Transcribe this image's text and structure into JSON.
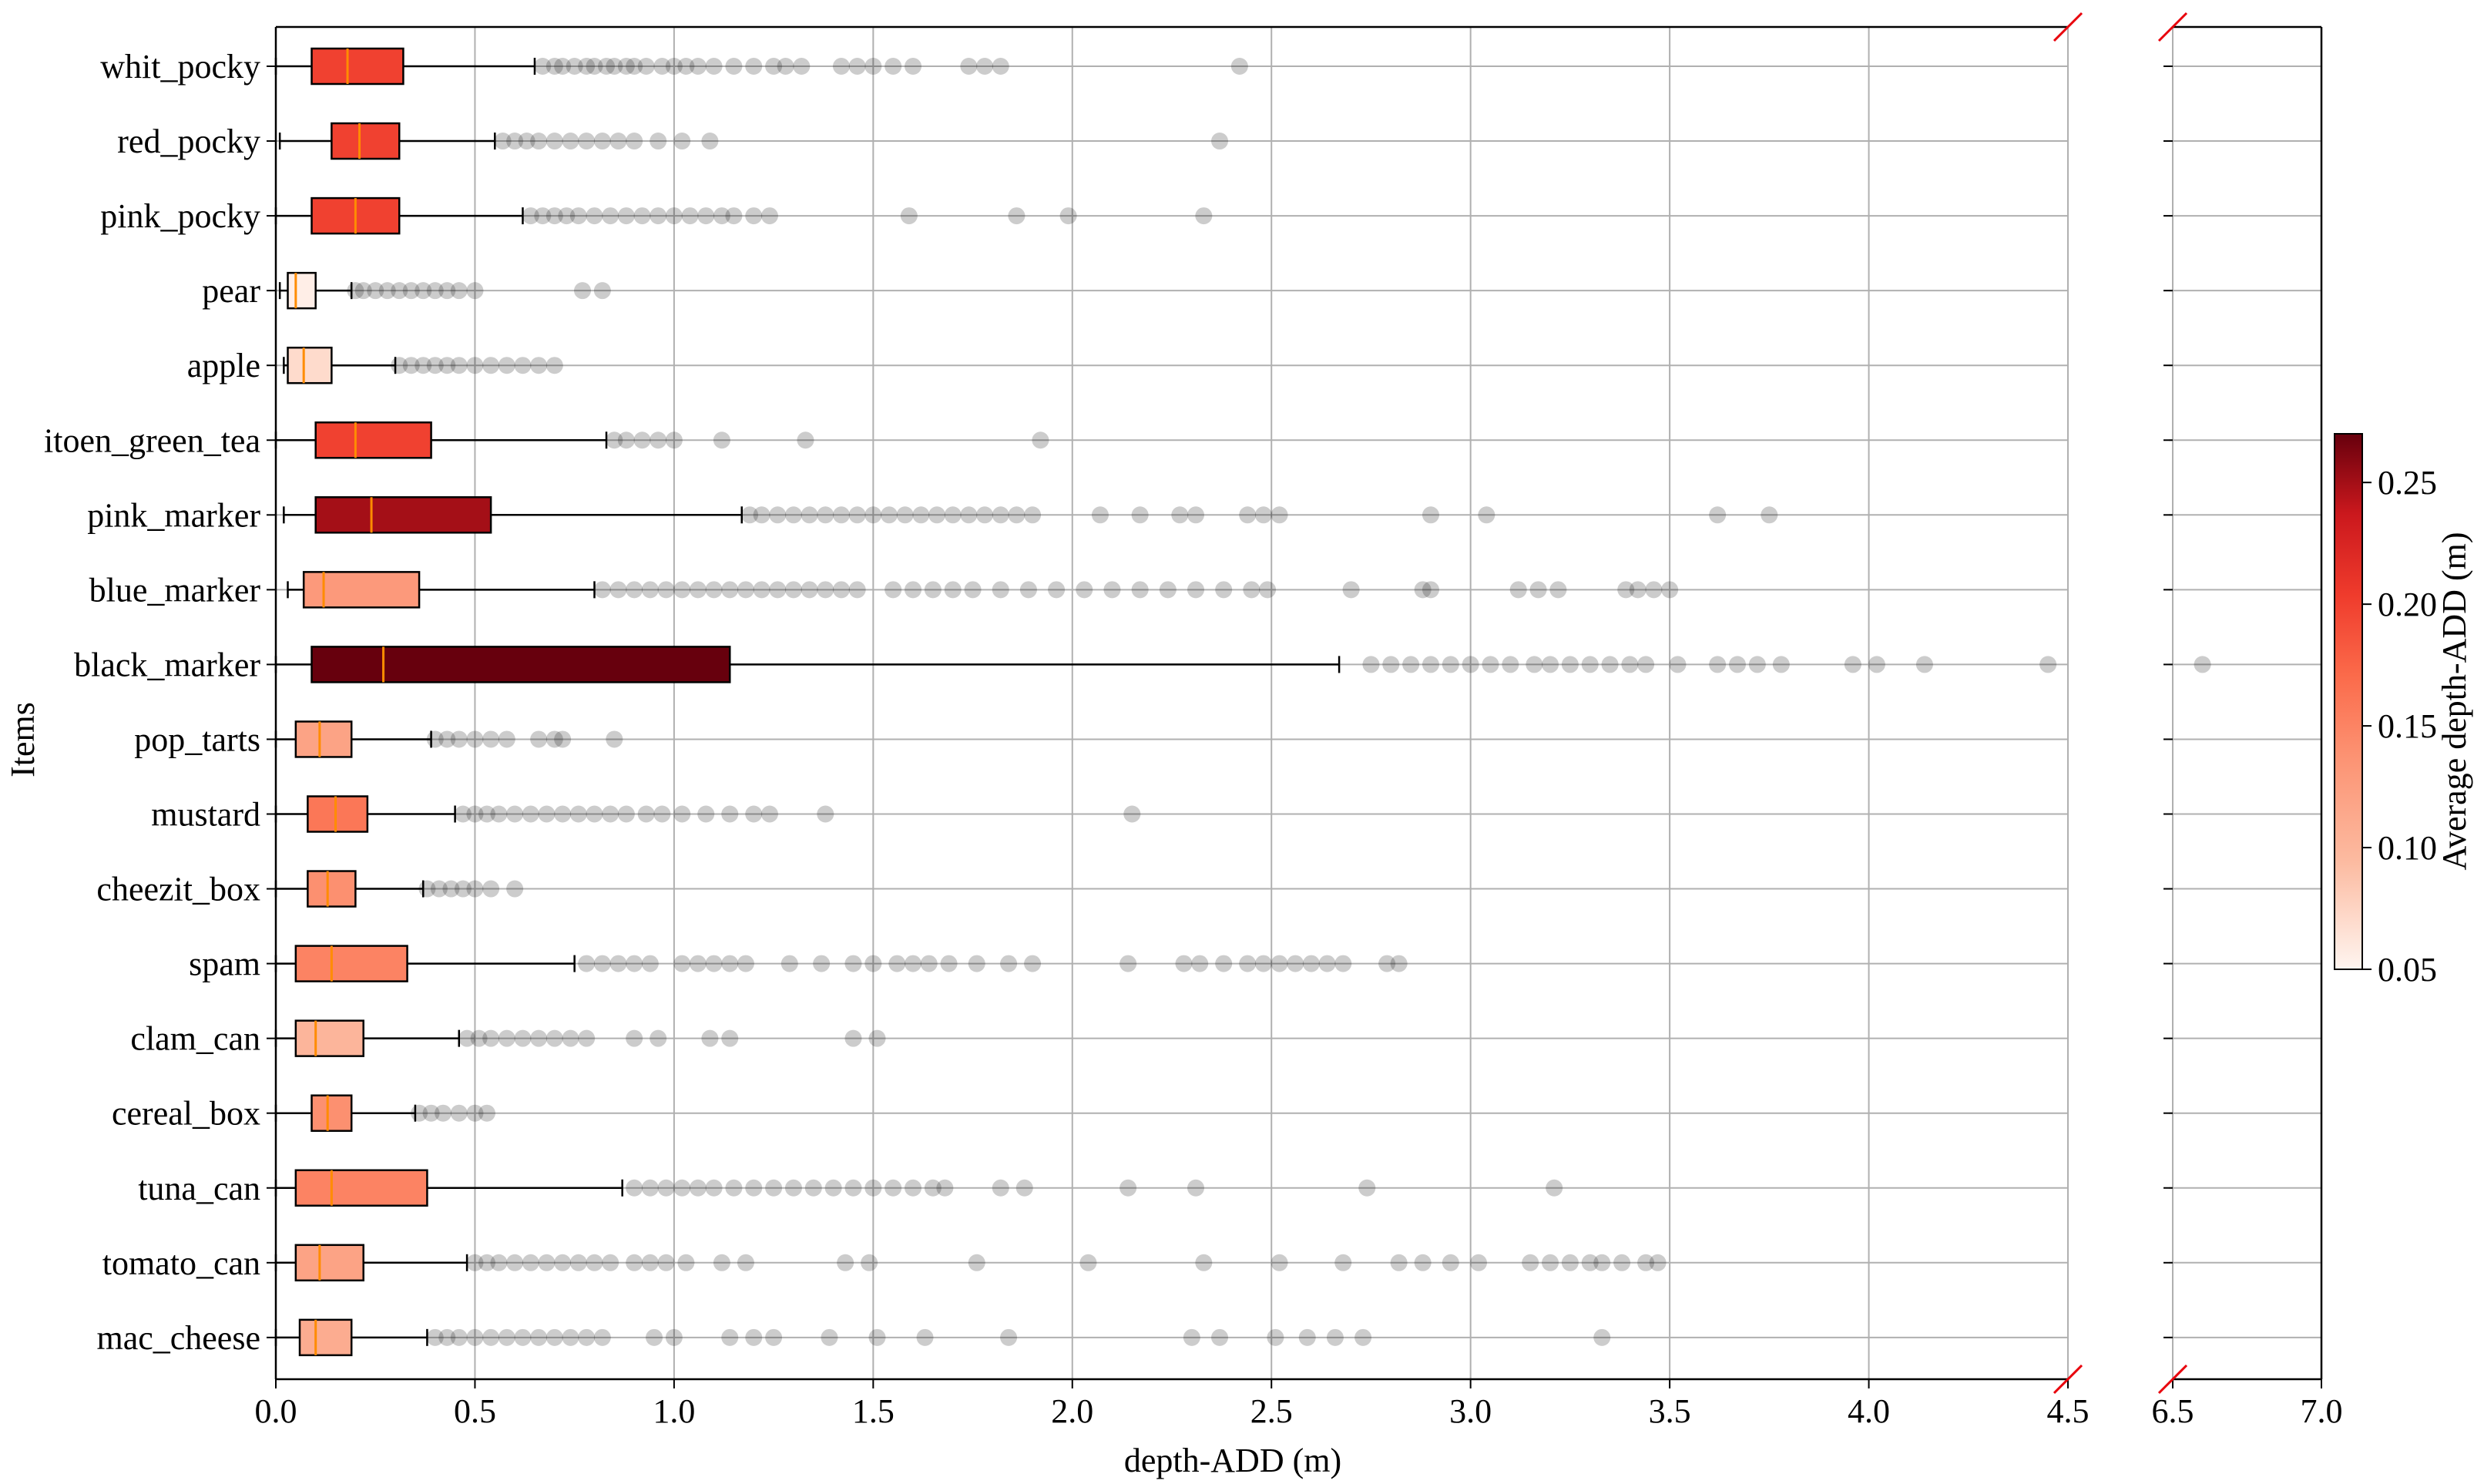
{
  "chart_data": {
    "type": "box",
    "xlabel": "depth-ADD (m)",
    "ylabel": "Items",
    "xlim_left": [
      0.0,
      4.5
    ],
    "xlim_right": [
      6.5,
      7.0
    ],
    "x_ticks_left": [
      "0.0",
      "0.5",
      "1.0",
      "1.5",
      "2.0",
      "2.5",
      "3.0",
      "3.5",
      "4.0",
      "4.5"
    ],
    "x_ticks_right": [
      "6.5",
      "7.0"
    ],
    "grid": true,
    "broken_axis": true,
    "colorbar": {
      "label": "Average depth-ADD (m)",
      "range": [
        0.05,
        0.27
      ],
      "ticks": [
        "0.05",
        "0.10",
        "0.15",
        "0.20",
        "0.25"
      ],
      "colormap": "Reds"
    },
    "items": [
      {
        "name": "whit_pocky",
        "mean": 0.2,
        "whislo": 0.0,
        "q1": 0.09,
        "med": 0.18,
        "q3": 0.32,
        "whishi": 0.65,
        "fliers": [
          0.67,
          0.7,
          0.72,
          0.75,
          0.78,
          0.8,
          0.83,
          0.85,
          0.88,
          0.9,
          0.93,
          0.97,
          1.0,
          1.03,
          1.06,
          1.1,
          1.15,
          1.2,
          1.25,
          1.28,
          1.32,
          1.42,
          1.46,
          1.5,
          1.55,
          1.6,
          1.74,
          1.78,
          1.82,
          2.42
        ]
      },
      {
        "name": "red_pocky",
        "mean": 0.2,
        "whislo": 0.01,
        "q1": 0.14,
        "med": 0.21,
        "q3": 0.31,
        "whishi": 0.55,
        "fliers": [
          0.57,
          0.6,
          0.63,
          0.66,
          0.7,
          0.74,
          0.78,
          0.82,
          0.86,
          0.9,
          0.96,
          1.02,
          1.09,
          2.37
        ]
      },
      {
        "name": "pink_pocky",
        "mean": 0.2,
        "whislo": 0.0,
        "q1": 0.09,
        "med": 0.2,
        "q3": 0.31,
        "whishi": 0.62,
        "fliers": [
          0.64,
          0.67,
          0.7,
          0.73,
          0.76,
          0.8,
          0.84,
          0.88,
          0.92,
          0.96,
          1.0,
          1.04,
          1.08,
          1.12,
          1.15,
          1.2,
          1.24,
          1.59,
          1.86,
          1.99,
          2.33
        ]
      },
      {
        "name": "pear",
        "mean": 0.055,
        "whislo": 0.01,
        "q1": 0.03,
        "med": 0.05,
        "q3": 0.1,
        "whishi": 0.19,
        "fliers": [
          0.2,
          0.22,
          0.25,
          0.28,
          0.31,
          0.34,
          0.37,
          0.4,
          0.43,
          0.46,
          0.5,
          0.77,
          0.82
        ]
      },
      {
        "name": "apple",
        "mean": 0.07,
        "whislo": 0.02,
        "q1": 0.03,
        "med": 0.07,
        "q3": 0.14,
        "whishi": 0.3,
        "fliers": [
          0.31,
          0.34,
          0.37,
          0.4,
          0.43,
          0.46,
          0.5,
          0.54,
          0.58,
          0.62,
          0.66,
          0.7
        ]
      },
      {
        "name": "itoen_green_tea",
        "mean": 0.2,
        "whislo": 0.0,
        "q1": 0.1,
        "med": 0.2,
        "q3": 0.39,
        "whishi": 0.83,
        "fliers": [
          0.85,
          0.88,
          0.92,
          0.96,
          1.0,
          1.12,
          1.33,
          1.92
        ]
      },
      {
        "name": "pink_marker",
        "mean": 0.25,
        "whislo": 0.02,
        "q1": 0.1,
        "med": 0.24,
        "q3": 0.54,
        "whishi": 1.17,
        "fliers": [
          1.19,
          1.22,
          1.26,
          1.3,
          1.34,
          1.38,
          1.42,
          1.46,
          1.5,
          1.54,
          1.58,
          1.62,
          1.66,
          1.7,
          1.74,
          1.78,
          1.82,
          1.86,
          1.9,
          2.07,
          2.17,
          2.27,
          2.31,
          2.44,
          2.48,
          2.52,
          2.9,
          3.04,
          3.62,
          3.75
        ]
      },
      {
        "name": "blue_marker",
        "mean": 0.13,
        "whislo": 0.03,
        "q1": 0.07,
        "med": 0.12,
        "q3": 0.36,
        "whishi": 0.8,
        "fliers": [
          0.82,
          0.86,
          0.9,
          0.94,
          0.98,
          1.02,
          1.06,
          1.1,
          1.14,
          1.18,
          1.22,
          1.26,
          1.3,
          1.34,
          1.38,
          1.42,
          1.46,
          1.55,
          1.6,
          1.65,
          1.7,
          1.75,
          1.82,
          1.89,
          1.96,
          2.03,
          2.1,
          2.17,
          2.24,
          2.31,
          2.38,
          2.45,
          2.49,
          2.7,
          2.88,
          2.9,
          3.12,
          3.17,
          3.22,
          3.39,
          3.42,
          3.46,
          3.5
        ]
      },
      {
        "name": "black_marker",
        "mean": 0.27,
        "whislo": 0.0,
        "q1": 0.09,
        "med": 0.27,
        "q3": 1.14,
        "whishi": 2.67,
        "fliers": [
          2.75,
          2.8,
          2.85,
          2.9,
          2.95,
          3.0,
          3.05,
          3.1,
          3.16,
          3.2,
          3.25,
          3.3,
          3.35,
          3.4,
          3.44,
          3.52,
          3.62,
          3.67,
          3.72,
          3.78,
          3.96,
          4.02,
          4.14,
          4.45,
          6.6
        ]
      },
      {
        "name": "pop_tarts",
        "mean": 0.12,
        "whislo": 0.0,
        "q1": 0.05,
        "med": 0.11,
        "q3": 0.19,
        "whishi": 0.39,
        "fliers": [
          0.4,
          0.43,
          0.46,
          0.5,
          0.54,
          0.58,
          0.66,
          0.7,
          0.72,
          0.85
        ]
      },
      {
        "name": "mustard",
        "mean": 0.16,
        "whislo": 0.0,
        "q1": 0.08,
        "med": 0.15,
        "q3": 0.23,
        "whishi": 0.45,
        "fliers": [
          0.47,
          0.5,
          0.53,
          0.56,
          0.6,
          0.64,
          0.68,
          0.72,
          0.76,
          0.8,
          0.84,
          0.88,
          0.93,
          0.97,
          1.02,
          1.08,
          1.14,
          1.2,
          1.24,
          1.38,
          2.15
        ]
      },
      {
        "name": "cheezit_box",
        "mean": 0.14,
        "whislo": 0.0,
        "q1": 0.08,
        "med": 0.13,
        "q3": 0.2,
        "whishi": 0.37,
        "fliers": [
          0.38,
          0.41,
          0.44,
          0.47,
          0.5,
          0.54,
          0.6
        ]
      },
      {
        "name": "spam",
        "mean": 0.15,
        "whislo": 0.0,
        "q1": 0.05,
        "med": 0.14,
        "q3": 0.33,
        "whishi": 0.75,
        "fliers": [
          0.78,
          0.82,
          0.86,
          0.9,
          0.94,
          1.02,
          1.06,
          1.1,
          1.14,
          1.18,
          1.29,
          1.37,
          1.45,
          1.5,
          1.56,
          1.6,
          1.64,
          1.69,
          1.76,
          1.84,
          1.9,
          2.14,
          2.28,
          2.32,
          2.38,
          2.44,
          2.48,
          2.52,
          2.56,
          2.6,
          2.64,
          2.68,
          2.79,
          2.82
        ]
      },
      {
        "name": "clam_can",
        "mean": 0.1,
        "whislo": 0.0,
        "q1": 0.05,
        "med": 0.1,
        "q3": 0.22,
        "whishi": 0.46,
        "fliers": [
          0.48,
          0.51,
          0.54,
          0.58,
          0.62,
          0.66,
          0.7,
          0.74,
          0.78,
          0.9,
          0.96,
          1.09,
          1.14,
          1.45,
          1.51
        ]
      },
      {
        "name": "cereal_box",
        "mean": 0.14,
        "whislo": 0.0,
        "q1": 0.09,
        "med": 0.13,
        "q3": 0.19,
        "whishi": 0.35,
        "fliers": [
          0.36,
          0.39,
          0.42,
          0.46,
          0.5,
          0.53
        ]
      },
      {
        "name": "tuna_can",
        "mean": 0.15,
        "whislo": 0.0,
        "q1": 0.05,
        "med": 0.14,
        "q3": 0.38,
        "whishi": 0.87,
        "fliers": [
          0.9,
          0.94,
          0.98,
          1.02,
          1.06,
          1.1,
          1.15,
          1.2,
          1.25,
          1.3,
          1.35,
          1.4,
          1.45,
          1.5,
          1.55,
          1.6,
          1.65,
          1.68,
          1.82,
          1.88,
          2.14,
          2.31,
          2.74,
          3.21
        ]
      },
      {
        "name": "tomato_can",
        "mean": 0.12,
        "whislo": 0.0,
        "q1": 0.05,
        "med": 0.11,
        "q3": 0.22,
        "whishi": 0.48,
        "fliers": [
          0.5,
          0.53,
          0.56,
          0.6,
          0.64,
          0.68,
          0.72,
          0.76,
          0.8,
          0.84,
          0.9,
          0.94,
          0.98,
          1.03,
          1.12,
          1.18,
          1.43,
          1.49,
          1.76,
          2.04,
          2.33,
          2.52,
          2.68,
          2.82,
          2.88,
          2.95,
          3.02,
          3.15,
          3.2,
          3.25,
          3.3,
          3.33,
          3.38,
          3.44,
          3.47
        ]
      },
      {
        "name": "mac_cheese",
        "mean": 0.11,
        "whislo": 0.0,
        "q1": 0.06,
        "med": 0.1,
        "q3": 0.19,
        "whishi": 0.38,
        "fliers": [
          0.4,
          0.43,
          0.46,
          0.5,
          0.54,
          0.58,
          0.62,
          0.66,
          0.7,
          0.74,
          0.78,
          0.82,
          0.95,
          1.0,
          1.14,
          1.2,
          1.25,
          1.39,
          1.51,
          1.63,
          1.84,
          2.3,
          2.37,
          2.51,
          2.59,
          2.66,
          2.73,
          3.33
        ]
      }
    ]
  }
}
